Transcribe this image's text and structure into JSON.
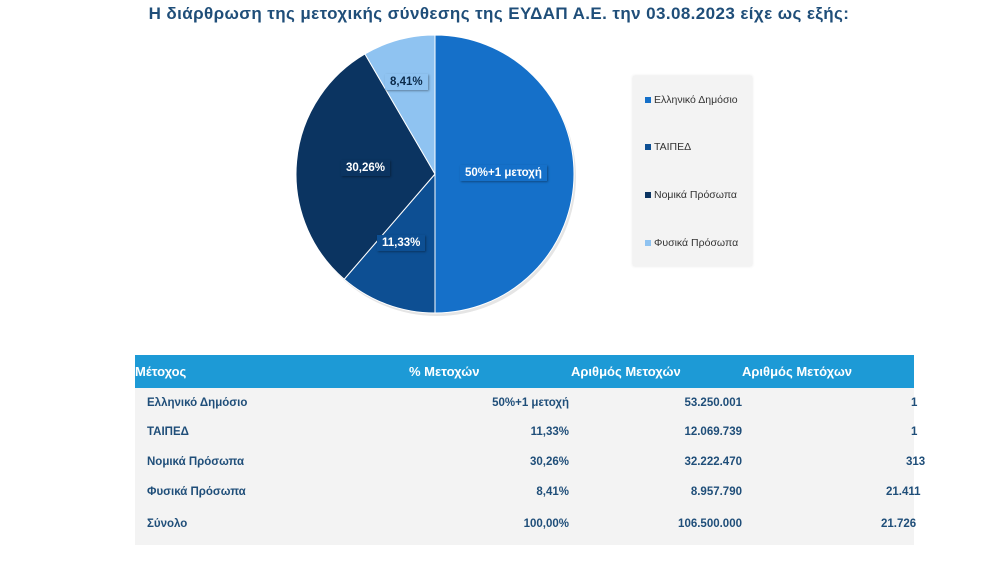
{
  "title": "Η διάρθρωση της μετοχικής σύνθεσης της ΕΥΔΑΠ Α.Ε. την  03.08.2023 είχε ως εξής:",
  "colors": {
    "ellinikoDimosio": "#1570c9",
    "taiped": "#0d4f93",
    "nomika": "#0b3461",
    "fysika": "#8fc3f1",
    "header": "#1d9ad6",
    "text": "#1f4e79"
  },
  "chart_data": {
    "type": "pie",
    "title": "Η διάρθρωση της μετοχικής σύνθεσης της ΕΥΔΑΠ Α.Ε. την  03.08.2023 είχε ως εξής:",
    "categories": [
      "Ελληνικό Δημόσιο",
      "ΤΑΙΠΕΔ",
      "Νομικά Πρόσωπα",
      "Φυσικά Πρόσωπα"
    ],
    "values": [
      50,
      11.33,
      30.26,
      8.41
    ],
    "data_labels": [
      "50%+1 μετοχή",
      "11,33%",
      "30,26%",
      "8,41%"
    ],
    "legend_position": "right"
  },
  "legend": {
    "items": [
      "Ελληνικό Δημόσιο",
      "ΤΑΙΠΕΔ",
      "Νομικά Πρόσωπα",
      "Φυσικά Πρόσωπα"
    ]
  },
  "table": {
    "headers": [
      "Μέτοχος",
      "% Μετοχών",
      "Αριθμός Μετοχών",
      "Αριθμός Μετόχων"
    ],
    "rows": [
      {
        "name": "Ελληνικό Δημόσιο",
        "pct": "50%+1 μετοχή",
        "shares": "53.250.001",
        "holders": "1"
      },
      {
        "name": "ΤΑΙΠΕΔ",
        "pct": "11,33%",
        "shares": "12.069.739",
        "holders": "1"
      },
      {
        "name": "Νομικά Πρόσωπα",
        "pct": "30,26%",
        "shares": "32.222.470",
        "holders": "313"
      },
      {
        "name": "Φυσικά Πρόσωπα",
        "pct": "8,41%",
        "shares": "8.957.790",
        "holders": "21.411"
      }
    ],
    "total": {
      "name": "Σύνολο",
      "pct": "100,00%",
      "shares": "106.500.000",
      "holders": "21.726"
    }
  }
}
